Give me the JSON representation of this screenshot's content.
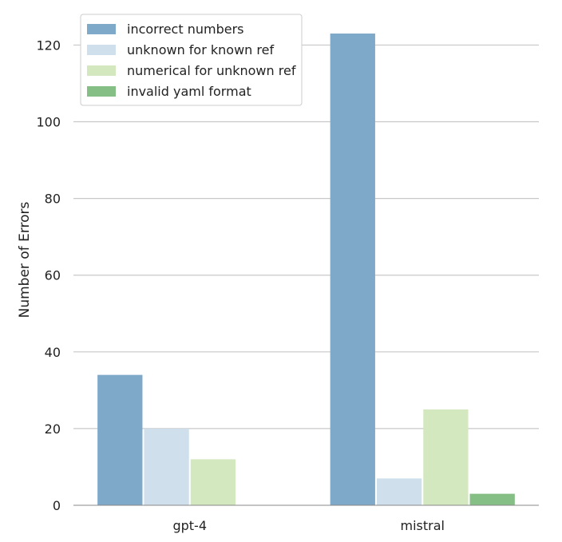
{
  "chart_data": {
    "type": "bar",
    "title": "",
    "xlabel": "",
    "ylabel": "Number of Errors",
    "categories": [
      "gpt-4",
      "mistral"
    ],
    "ylim": [
      0,
      128
    ],
    "yticks": [
      0,
      20,
      40,
      60,
      80,
      100,
      120
    ],
    "grid": "horizontal",
    "legend_position": "top-left",
    "series": [
      {
        "name": "incorrect numbers",
        "values": [
          34,
          123
        ],
        "color": "#7fa9c9"
      },
      {
        "name": "unknown for known ref",
        "values": [
          20,
          7
        ],
        "color": "#cfe0ec"
      },
      {
        "name": "numerical for unknown ref",
        "values": [
          12,
          25
        ],
        "color": "#d4e8c0"
      },
      {
        "name": "invalid yaml format",
        "values": [
          0,
          3
        ],
        "color": "#86bf86"
      }
    ]
  }
}
